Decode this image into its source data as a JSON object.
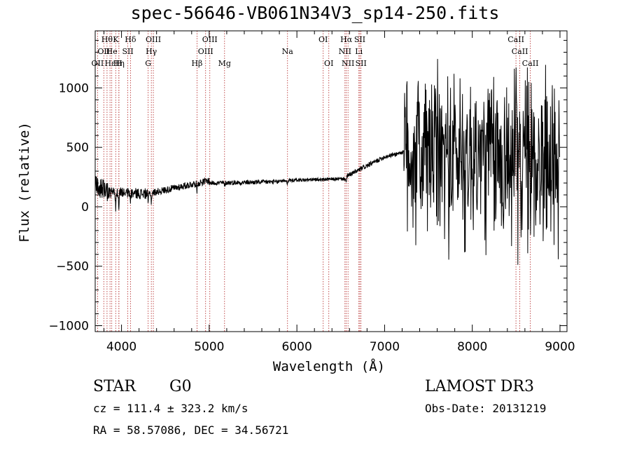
{
  "chart_data": {
    "type": "line",
    "title": "spec-56646-VB061N34V3_sp14-250.fits",
    "xlabel": "Wavelength (Å)",
    "ylabel": "Flux (relative)",
    "xlim": [
      3700,
      9080
    ],
    "ylim": [
      -1050,
      1480
    ],
    "xticks": [
      4000,
      5000,
      6000,
      7000,
      8000,
      9000
    ],
    "yticks": [
      -1000,
      -500,
      0,
      500,
      1000
    ],
    "ytick_labels": [
      "−1000",
      "−500",
      "0",
      "500",
      "1000"
    ],
    "series": [
      {
        "name": "spectrum",
        "color": "#000000",
        "segments": [
          {
            "start": 3700,
            "end": 3850,
            "base_start": 180,
            "base_end": 130,
            "noise": 90
          },
          {
            "start": 3850,
            "end": 4300,
            "base_start": 120,
            "base_end": 110,
            "noise": 45
          },
          {
            "start": 4300,
            "end": 5000,
            "base_start": 110,
            "base_end": 220,
            "noise": 30
          },
          {
            "start": 5000,
            "end": 5800,
            "base_start": 200,
            "base_end": 210,
            "noise": 20
          },
          {
            "start": 5800,
            "end": 6550,
            "base_start": 220,
            "base_end": 235,
            "noise": 15
          },
          {
            "start": 6550,
            "end": 7000,
            "base_start": 250,
            "base_end": 420,
            "noise": 20
          },
          {
            "start": 7000,
            "end": 7220,
            "base_start": 420,
            "base_end": 460,
            "noise": 18
          },
          {
            "start": 7220,
            "end": 9000,
            "base_start": 450,
            "base_end": 380,
            "noise": 520
          }
        ],
        "dips": [
          {
            "x": 3934,
            "depth": 140
          },
          {
            "x": 3969,
            "depth": 120
          },
          {
            "x": 4101,
            "depth": 60
          },
          {
            "x": 4303,
            "depth": 70
          },
          {
            "x": 4340,
            "depth": 80
          },
          {
            "x": 4861,
            "depth": 60
          },
          {
            "x": 5175,
            "depth": 30
          },
          {
            "x": 5890,
            "depth": 40
          },
          {
            "x": 6563,
            "depth": 60
          }
        ]
      }
    ],
    "lines": [
      {
        "x": 3727,
        "label": "OII",
        "row": 2
      },
      {
        "x": 3798,
        "label": "OII",
        "row": 1
      },
      {
        "x": 3835,
        "label": "Hθ",
        "row": 0
      },
      {
        "x": 3869,
        "label": "Hε",
        "row": 2
      },
      {
        "x": 3889,
        "label": "He",
        "row": 1
      },
      {
        "x": 3934,
        "label": "K",
        "row": 0
      },
      {
        "x": 3970,
        "label": "Hη",
        "row": 2
      },
      {
        "x": 3970,
        "label": "H",
        "row": 2
      },
      {
        "x": 4072,
        "label": "SII",
        "row": 1
      },
      {
        "x": 4102,
        "label": "Hδ",
        "row": 0
      },
      {
        "x": 4304,
        "label": "G",
        "row": 2
      },
      {
        "x": 4340,
        "label": "Hγ",
        "row": 1
      },
      {
        "x": 4363,
        "label": "OIII",
        "row": 0
      },
      {
        "x": 4861,
        "label": "Hβ",
        "row": 2
      },
      {
        "x": 4959,
        "label": "OIII",
        "row": 1
      },
      {
        "x": 5007,
        "label": "OIII",
        "row": 0
      },
      {
        "x": 5175,
        "label": "Mg",
        "row": 2
      },
      {
        "x": 5893,
        "label": "Na",
        "row": 1
      },
      {
        "x": 6300,
        "label": "OI",
        "row": 0
      },
      {
        "x": 6364,
        "label": "OI",
        "row": 2
      },
      {
        "x": 6548,
        "label": "NII",
        "row": 1
      },
      {
        "x": 6563,
        "label": "Hα",
        "row": 0
      },
      {
        "x": 6583,
        "label": "NII",
        "row": 2
      },
      {
        "x": 6707,
        "label": "Li",
        "row": 1
      },
      {
        "x": 6717,
        "label": "SII",
        "row": 0
      },
      {
        "x": 6731,
        "label": "SII",
        "row": 2
      },
      {
        "x": 8498,
        "label": "CaII",
        "row": 0
      },
      {
        "x": 8542,
        "label": "CaII",
        "row": 1
      },
      {
        "x": 8662,
        "label": "CaII",
        "row": 2
      }
    ]
  },
  "info": {
    "object_class": "STAR",
    "subclass": "G0",
    "survey": "LAMOST DR3",
    "cz": "cz = 111.4 ± 323.2 km/s",
    "obs_date": "Obs-Date: 20131219",
    "radec": "RA =  58.57086, DEC =  34.56721"
  },
  "colors": {
    "axis": "#000000",
    "line_marker": "#b22222"
  }
}
